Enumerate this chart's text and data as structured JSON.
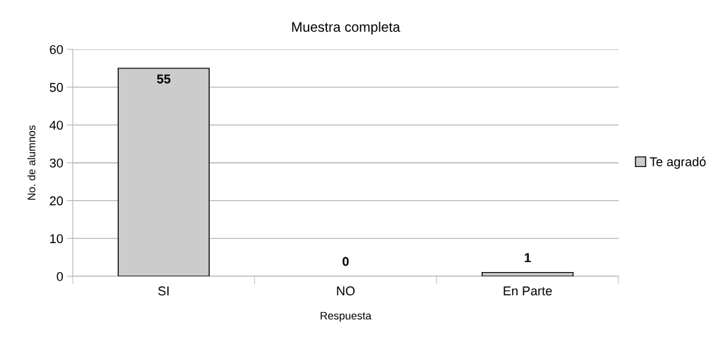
{
  "chart_data": {
    "type": "bar",
    "title": "Muestra completa",
    "xlabel": "Respuesta",
    "ylabel": "No. de alumnos",
    "categories": [
      "SI",
      "NO",
      "En Parte"
    ],
    "series": [
      {
        "name": "Te agradó",
        "color": "#cccccc",
        "values": [
          55,
          0,
          1
        ]
      }
    ],
    "ylim": [
      0,
      60
    ],
    "yticks": [
      0,
      10,
      20,
      30,
      40,
      50,
      60
    ],
    "grid": "y",
    "legend": "right",
    "data_labels": true
  }
}
